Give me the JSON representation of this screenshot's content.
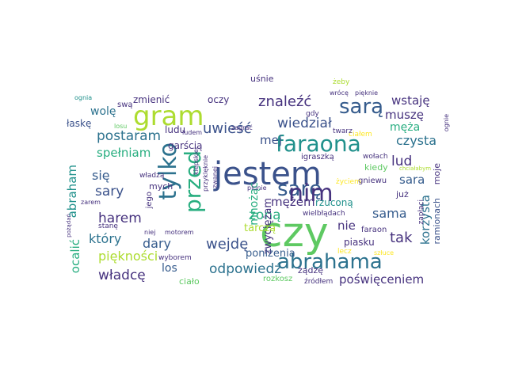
{
  "palette": {
    "dark_purple": "#46327e",
    "indigo": "#3b528b",
    "blue": "#365c8d",
    "teal_blue": "#2c728e",
    "teal": "#21918c",
    "green_teal": "#28ae80",
    "green": "#5ec962",
    "lime": "#addc30",
    "yellow": "#fde725"
  },
  "words": [
    "czy",
    "jestem",
    "gram",
    "faraona",
    "sarę",
    "przed",
    "tylko",
    "nim",
    "abrahama",
    "sarą",
    "znaleźć",
    "wiedział",
    "uwieść",
    "postaram",
    "spełniam",
    "abraham",
    "się",
    "sary",
    "harem",
    "lud",
    "sara",
    "czysta",
    "mężem",
    "mej",
    "żoną",
    "zwyciężam",
    "sama",
    "tak",
    "nie",
    "wejdę",
    "dary",
    "który",
    "piękności",
    "ocalić",
    "władcę",
    "poniżenia",
    "odpowiedź",
    "poświęceniem",
    "los",
    "korzysta",
    "wstaję",
    "muszę",
    "męża",
    "wolę",
    "zmienić",
    "oczy",
    "łaskę",
    "ludu",
    "garścią",
    "mych",
    "rzuconą",
    "kiedy",
    "gniewu",
    "już",
    "ramionach",
    "moje",
    "piasku",
    "faraon",
    "żądzę",
    "źródłem",
    "rozkosz",
    "ciało",
    "tarczą",
    "mnożąc",
    "jego",
    "uśnie",
    "żeby",
    "wrócę",
    "pięknie",
    "gdy",
    "zagrać",
    "ciałem",
    "ludem",
    "swą",
    "ognia",
    "losu",
    "twarz",
    "igraszką",
    "wołach",
    "ognie",
    "chciałabym",
    "zapłaci",
    "życiem",
    "plunie",
    "wielbłądach",
    "lecz",
    "szłuce",
    "wyborem",
    "motorem",
    "niej",
    "stanę",
    "zarem",
    "pożądań",
    "przyklęknie",
    "zwanej",
    "władzą",
    "kiepskiej"
  ]
}
